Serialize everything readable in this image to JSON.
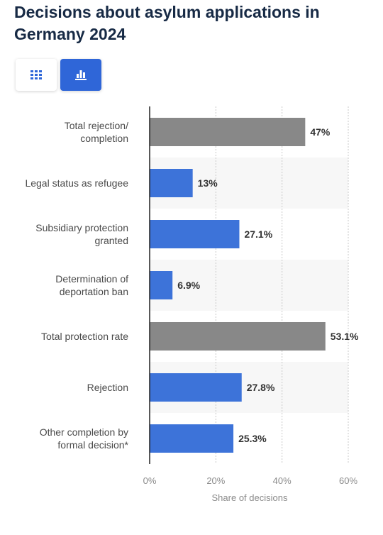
{
  "title": "Decisions about asylum applications in Germany 2024",
  "view_toggle": {
    "table_icon": "grid-table-icon",
    "chart_icon": "bar-chart-icon",
    "active": "chart",
    "active_color": "#2f66d8"
  },
  "chart_data": {
    "type": "bar",
    "orientation": "horizontal",
    "categories": [
      [
        "Total rejection/",
        "completion"
      ],
      [
        "Legal status as refugee"
      ],
      [
        "Subsidiary protection",
        "granted"
      ],
      [
        "Determination of",
        "deportation ban"
      ],
      [
        "Total protection rate"
      ],
      [
        "Rejection"
      ],
      [
        "Other completion by",
        "formal decision*"
      ]
    ],
    "values": [
      47,
      13,
      27.1,
      6.9,
      53.1,
      27.8,
      25.3
    ],
    "value_labels": [
      "47%",
      "13%",
      "27.1%",
      "6.9%",
      "53.1%",
      "27.8%",
      "25.3%"
    ],
    "bar_colors": [
      "#888888",
      "#3d73d9",
      "#3d73d9",
      "#3d73d9",
      "#888888",
      "#3d73d9",
      "#3d73d9"
    ],
    "xlabel": "Share of decisions",
    "xlim": [
      0,
      60
    ],
    "x_ticks": [
      0,
      20,
      40,
      60
    ],
    "x_tick_labels": [
      "0%",
      "20%",
      "40%",
      "60%"
    ],
    "grid": true
  }
}
